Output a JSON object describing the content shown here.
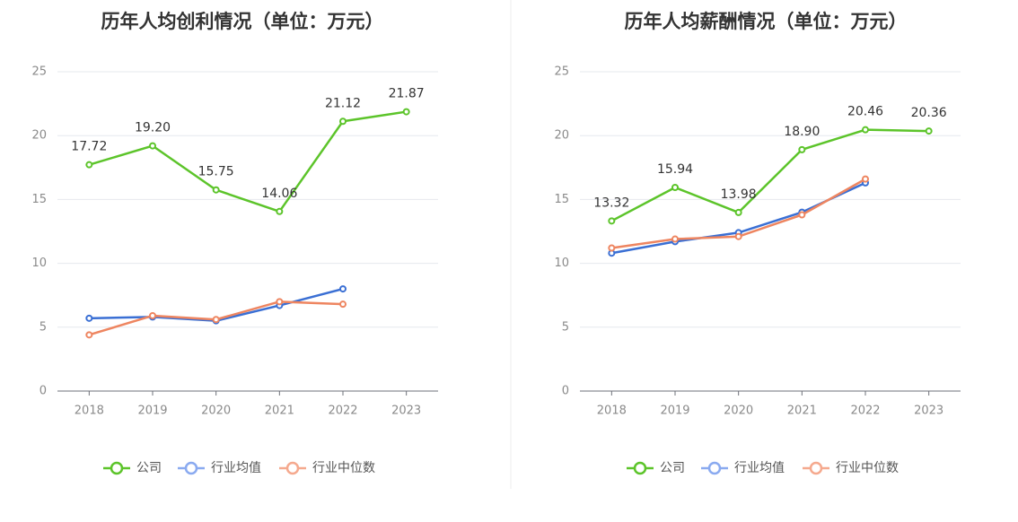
{
  "chart_data": [
    {
      "type": "line",
      "title": "历年人均创利情况（单位：万元）",
      "categories": [
        "2018",
        "2019",
        "2020",
        "2021",
        "2022",
        "2023"
      ],
      "ylim": [
        0,
        25
      ],
      "yticks": [
        0,
        5,
        10,
        15,
        20,
        25
      ],
      "grid": true,
      "legend_position": "bottom",
      "series": [
        {
          "name": "公司",
          "color": "#5cc42a",
          "values": [
            17.72,
            19.2,
            15.75,
            14.06,
            21.12,
            21.87
          ],
          "labels": [
            "17.72",
            "19.20",
            "15.75",
            "14.06",
            "21.12",
            "21.87"
          ]
        },
        {
          "name": "行业均值",
          "color": "#3a6fd4",
          "values": [
            5.7,
            5.8,
            5.5,
            6.7,
            8.0,
            null
          ]
        },
        {
          "name": "行业中位数",
          "color": "#ee8560",
          "values": [
            4.4,
            5.9,
            5.6,
            7.0,
            6.8,
            null
          ]
        }
      ]
    },
    {
      "type": "line",
      "title": "历年人均薪酬情况（单位：万元）",
      "categories": [
        "2018",
        "2019",
        "2020",
        "2021",
        "2022",
        "2023"
      ],
      "ylim": [
        0,
        25
      ],
      "yticks": [
        0,
        5,
        10,
        15,
        20,
        25
      ],
      "grid": true,
      "legend_position": "bottom",
      "series": [
        {
          "name": "公司",
          "color": "#5cc42a",
          "values": [
            13.32,
            15.94,
            13.98,
            18.9,
            20.46,
            20.36
          ],
          "labels": [
            "13.32",
            "15.94",
            "13.98",
            "18.90",
            "20.46",
            "20.36"
          ]
        },
        {
          "name": "行业均值",
          "color": "#3a6fd4",
          "values": [
            10.8,
            11.7,
            12.4,
            14.0,
            16.3,
            null
          ]
        },
        {
          "name": "行业中位数",
          "color": "#ee8560",
          "values": [
            11.2,
            11.9,
            12.1,
            13.8,
            16.6,
            null
          ]
        }
      ]
    }
  ],
  "legend_colors": {
    "公司": "#5cc42a",
    "行业均值": "#8aaaf0",
    "行业中位数": "#f5a98e"
  }
}
